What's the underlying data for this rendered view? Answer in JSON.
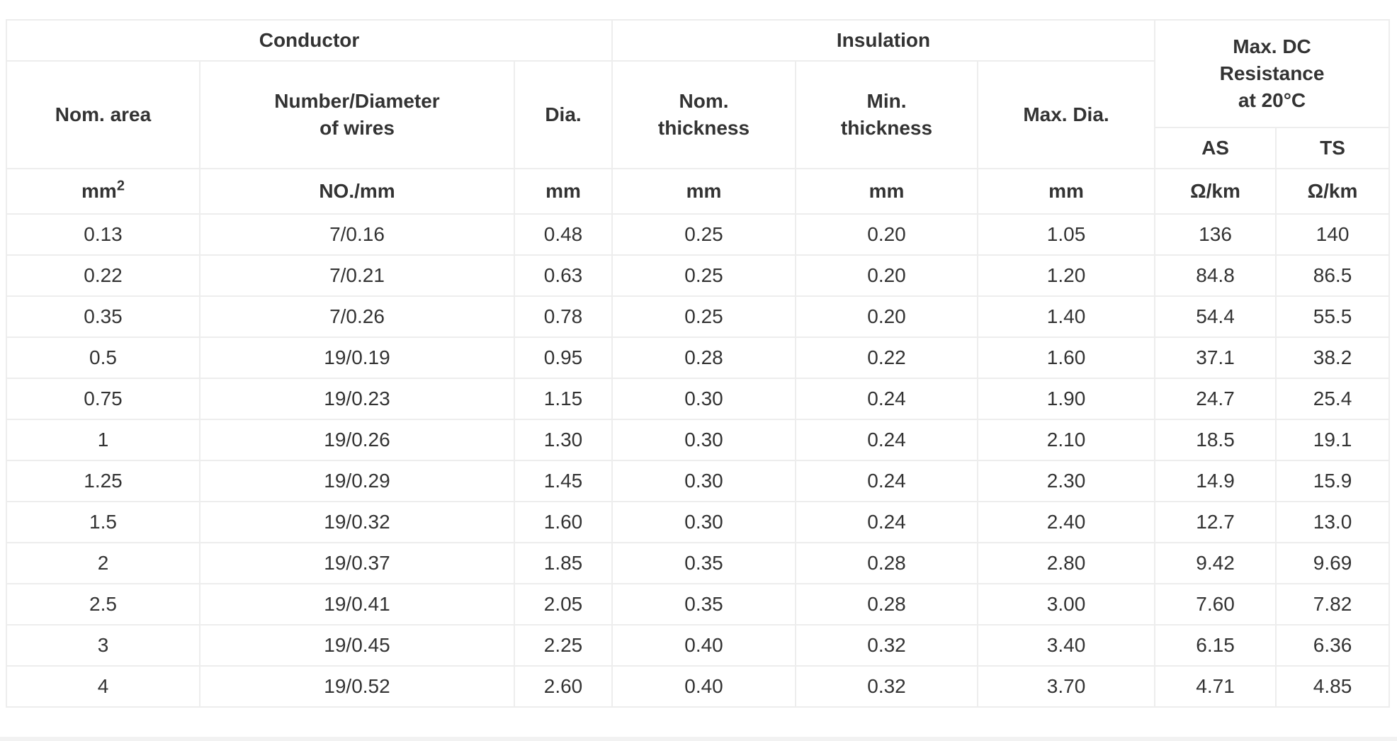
{
  "page": {
    "background": "#ffffff",
    "bottom_strip_color": "#f2f2f2"
  },
  "table": {
    "border_color": "#ededed",
    "text_color": "#333333",
    "groups": {
      "conductor": "Conductor",
      "insulation": "Insulation",
      "resistance_line1": "Max. DC",
      "resistance_line2": "Resistance",
      "resistance_line3": "at 20°C"
    },
    "subheaders": {
      "nom_area": "Nom. area",
      "wires_line1": "Number/Diameter",
      "wires_line2": "of wires",
      "dia": "Dia.",
      "nom_thickness_line1": "Nom.",
      "nom_thickness_line2": "thickness",
      "min_thickness_line1": "Min.",
      "min_thickness_line2": "thickness",
      "max_dia": "Max. Dia.",
      "as_label": "AS",
      "ts_label": "TS"
    },
    "units": {
      "area_base": "mm",
      "area_sup": "2",
      "wires": "NO./mm",
      "dia": "mm",
      "nom_thickness": "mm",
      "min_thickness": "mm",
      "max_dia": "mm",
      "as_unit": "Ω/km",
      "ts_unit": "Ω/km"
    },
    "rows": [
      [
        "0.13",
        "7/0.16",
        "0.48",
        "0.25",
        "0.20",
        "1.05",
        "136",
        "140"
      ],
      [
        "0.22",
        "7/0.21",
        "0.63",
        "0.25",
        "0.20",
        "1.20",
        "84.8",
        "86.5"
      ],
      [
        "0.35",
        "7/0.26",
        "0.78",
        "0.25",
        "0.20",
        "1.40",
        "54.4",
        "55.5"
      ],
      [
        "0.5",
        "19/0.19",
        "0.95",
        "0.28",
        "0.22",
        "1.60",
        "37.1",
        "38.2"
      ],
      [
        "0.75",
        "19/0.23",
        "1.15",
        "0.30",
        "0.24",
        "1.90",
        "24.7",
        "25.4"
      ],
      [
        "1",
        "19/0.26",
        "1.30",
        "0.30",
        "0.24",
        "2.10",
        "18.5",
        "19.1"
      ],
      [
        "1.25",
        "19/0.29",
        "1.45",
        "0.30",
        "0.24",
        "2.30",
        "14.9",
        "15.9"
      ],
      [
        "1.5",
        "19/0.32",
        "1.60",
        "0.30",
        "0.24",
        "2.40",
        "12.7",
        "13.0"
      ],
      [
        "2",
        "19/0.37",
        "1.85",
        "0.35",
        "0.28",
        "2.80",
        "9.42",
        "9.69"
      ],
      [
        "2.5",
        "19/0.41",
        "2.05",
        "0.35",
        "0.28",
        "3.00",
        "7.60",
        "7.82"
      ],
      [
        "3",
        "19/0.45",
        "2.25",
        "0.40",
        "0.32",
        "3.40",
        "6.15",
        "6.36"
      ],
      [
        "4",
        "19/0.52",
        "2.60",
        "0.40",
        "0.32",
        "3.70",
        "4.71",
        "4.85"
      ]
    ]
  }
}
